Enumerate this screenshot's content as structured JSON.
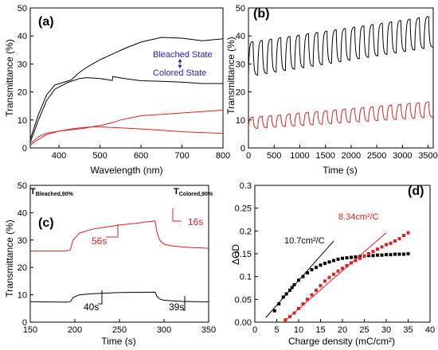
{
  "chart_data": [
    {
      "panel": "(a)",
      "type": "line",
      "xlabel": "Wavelength (nm)",
      "ylabel": "Transmittance (%)",
      "xlim": [
        330,
        800
      ],
      "ylim": [
        0,
        50
      ],
      "xticks": [
        400,
        500,
        600,
        700,
        800
      ],
      "yticks": [
        0,
        10,
        20,
        30,
        40,
        50
      ],
      "annotations": [
        "Bleached State",
        "Colored State"
      ],
      "series": [
        {
          "color": "#000000",
          "x": [
            330,
            350,
            370,
            390,
            410,
            430,
            450,
            470,
            500,
            530,
            560,
            600,
            650,
            700,
            750,
            800
          ],
          "y": [
            3,
            12,
            19,
            22.5,
            23.4,
            24.3,
            27,
            29,
            31.5,
            33.5,
            35.5,
            37.8,
            39.5,
            39.2,
            38.3,
            39
          ]
        },
        {
          "color": "#000000",
          "x": [
            330,
            350,
            370,
            390,
            420,
            450,
            470,
            500,
            530,
            531,
            560,
            600,
            650,
            700,
            750,
            800
          ],
          "y": [
            2,
            10,
            17,
            21,
            23.3,
            24.8,
            25.1,
            24.8,
            24.1,
            25.5,
            24.8,
            24,
            23.8,
            23.5,
            23,
            23
          ]
        },
        {
          "color": "#e02020",
          "x": [
            330,
            350,
            370,
            400,
            430,
            460,
            500,
            530,
            550,
            600,
            650,
            700,
            750,
            800
          ],
          "y": [
            1.5,
            4,
            5.3,
            6,
            6.5,
            7,
            8,
            9,
            10,
            11.5,
            12,
            12.5,
            13,
            13.5
          ]
        },
        {
          "color": "#e02020",
          "x": [
            330,
            350,
            370,
            400,
            430,
            460,
            480,
            500,
            550,
            600,
            650,
            700,
            750,
            800
          ],
          "y": [
            1,
            3,
            4.8,
            6,
            6.8,
            7.3,
            7.5,
            7.5,
            7.2,
            6.8,
            6.3,
            5.8,
            5.5,
            5.2
          ]
        }
      ]
    },
    {
      "panel": "(b)",
      "type": "line",
      "xlabel": "Time (s)",
      "ylabel": "Transmittance (%)",
      "xlim": [
        0,
        3600
      ],
      "ylim": [
        0,
        50
      ],
      "xticks": [
        0,
        500,
        1000,
        1500,
        2000,
        2500,
        3000,
        3500
      ],
      "yticks": [
        0,
        10,
        20,
        30,
        40,
        50
      ],
      "cycles": 20,
      "period_s": 180,
      "series": [
        {
          "color": "#000000",
          "high_start": 38,
          "high_end": 47,
          "low_start": 26,
          "low_end": 36
        },
        {
          "color": "#e02020",
          "high_start": 11,
          "high_end": 16.5,
          "low_start": 7,
          "low_end": 11
        }
      ]
    },
    {
      "panel": "(c)",
      "type": "line",
      "xlabel": "Time (s)",
      "ylabel": "Transmittance (%)",
      "xlim": [
        150,
        350
      ],
      "ylim": [
        0,
        50
      ],
      "xticks": [
        150,
        200,
        250,
        300,
        350
      ],
      "yticks": [
        0,
        10,
        20,
        30,
        40,
        50
      ],
      "corner_labels": [
        {
          "main": "T",
          "sub": "Bleached,90%"
        },
        {
          "main": "T",
          "sub": "Colored,90%"
        }
      ],
      "annotations": [
        {
          "text": "56s",
          "color": "#e02020"
        },
        {
          "text": "16s",
          "color": "#e02020"
        },
        {
          "text": "40s",
          "color": "#000000"
        },
        {
          "text": "39s",
          "color": "#000000"
        }
      ],
      "series": [
        {
          "color": "#e02020",
          "x": [
            150,
            190,
            195,
            198,
            205,
            220,
            250,
            270,
            290,
            292,
            295,
            300,
            310,
            320,
            335,
            350
          ],
          "y": [
            26,
            26,
            26.5,
            30,
            32.5,
            34,
            35.5,
            36.2,
            37,
            33,
            30,
            28.5,
            27.8,
            27.5,
            27.2,
            27
          ]
        },
        {
          "color": "#000000",
          "x": [
            150,
            190,
            195,
            198,
            205,
            220,
            250,
            270,
            290,
            292,
            295,
            300,
            310,
            320,
            335,
            350
          ],
          "y": [
            7.5,
            7.3,
            7.5,
            9,
            10,
            10.4,
            10.8,
            10.9,
            11,
            9.5,
            8.5,
            8,
            7.8,
            7.6,
            7.5,
            7.4
          ]
        }
      ]
    },
    {
      "panel": "(d)",
      "type": "scatter",
      "xlabel": "Charge density (mC/cm²)",
      "ylabel": "ΔOD",
      "xlim": [
        0,
        40
      ],
      "ylim": [
        0,
        0.3
      ],
      "xticks": [
        0,
        5,
        10,
        15,
        20,
        25,
        30,
        35,
        40
      ],
      "yticks": [
        0.0,
        0.05,
        0.1,
        0.15,
        0.2,
        0.25,
        0.3
      ],
      "series": [
        {
          "color": "#000000",
          "marker": "square",
          "x": [
            4.5,
            5.5,
            6.5,
            7.2,
            8,
            8.5,
            9,
            10,
            11,
            12,
            13,
            14,
            15,
            16,
            17,
            18,
            19,
            20,
            21,
            22,
            23,
            24,
            25,
            26,
            27,
            28,
            29,
            30,
            31,
            32,
            33,
            34,
            35
          ],
          "y": [
            0.025,
            0.04,
            0.055,
            0.062,
            0.07,
            0.076,
            0.082,
            0.092,
            0.1,
            0.108,
            0.115,
            0.12,
            0.125,
            0.129,
            0.132,
            0.135,
            0.138,
            0.14,
            0.141,
            0.142,
            0.143,
            0.144,
            0.145,
            0.146,
            0.146,
            0.147,
            0.147,
            0.148,
            0.148,
            0.149,
            0.149,
            0.149,
            0.15
          ]
        },
        {
          "color": "#e02020",
          "marker": "square",
          "x": [
            7,
            8,
            9,
            10,
            11,
            12,
            13,
            14,
            15,
            16,
            17,
            18,
            19,
            20,
            21,
            22,
            23,
            24,
            25,
            26,
            27,
            28,
            29,
            30,
            31,
            32,
            33,
            34,
            35
          ],
          "y": [
            0.005,
            0.012,
            0.02,
            0.03,
            0.04,
            0.05,
            0.06,
            0.07,
            0.08,
            0.09,
            0.098,
            0.105,
            0.112,
            0.118,
            0.124,
            0.13,
            0.135,
            0.14,
            0.145,
            0.15,
            0.155,
            0.16,
            0.165,
            0.17,
            0.173,
            0.178,
            0.183,
            0.19,
            0.196
          ]
        },
        {
          "color": "#000000",
          "type": "fit",
          "x": [
            2.5,
            18
          ],
          "y": [
            0.01,
            0.178
          ]
        },
        {
          "color": "#e02020",
          "type": "fit",
          "x": [
            6.5,
            30
          ],
          "y": [
            0.0,
            0.196
          ]
        }
      ],
      "annotations": [
        {
          "text": "10.7cm²/C",
          "color": "#000000"
        },
        {
          "text": "8.34cm²/C",
          "color": "#e02020"
        }
      ]
    }
  ]
}
